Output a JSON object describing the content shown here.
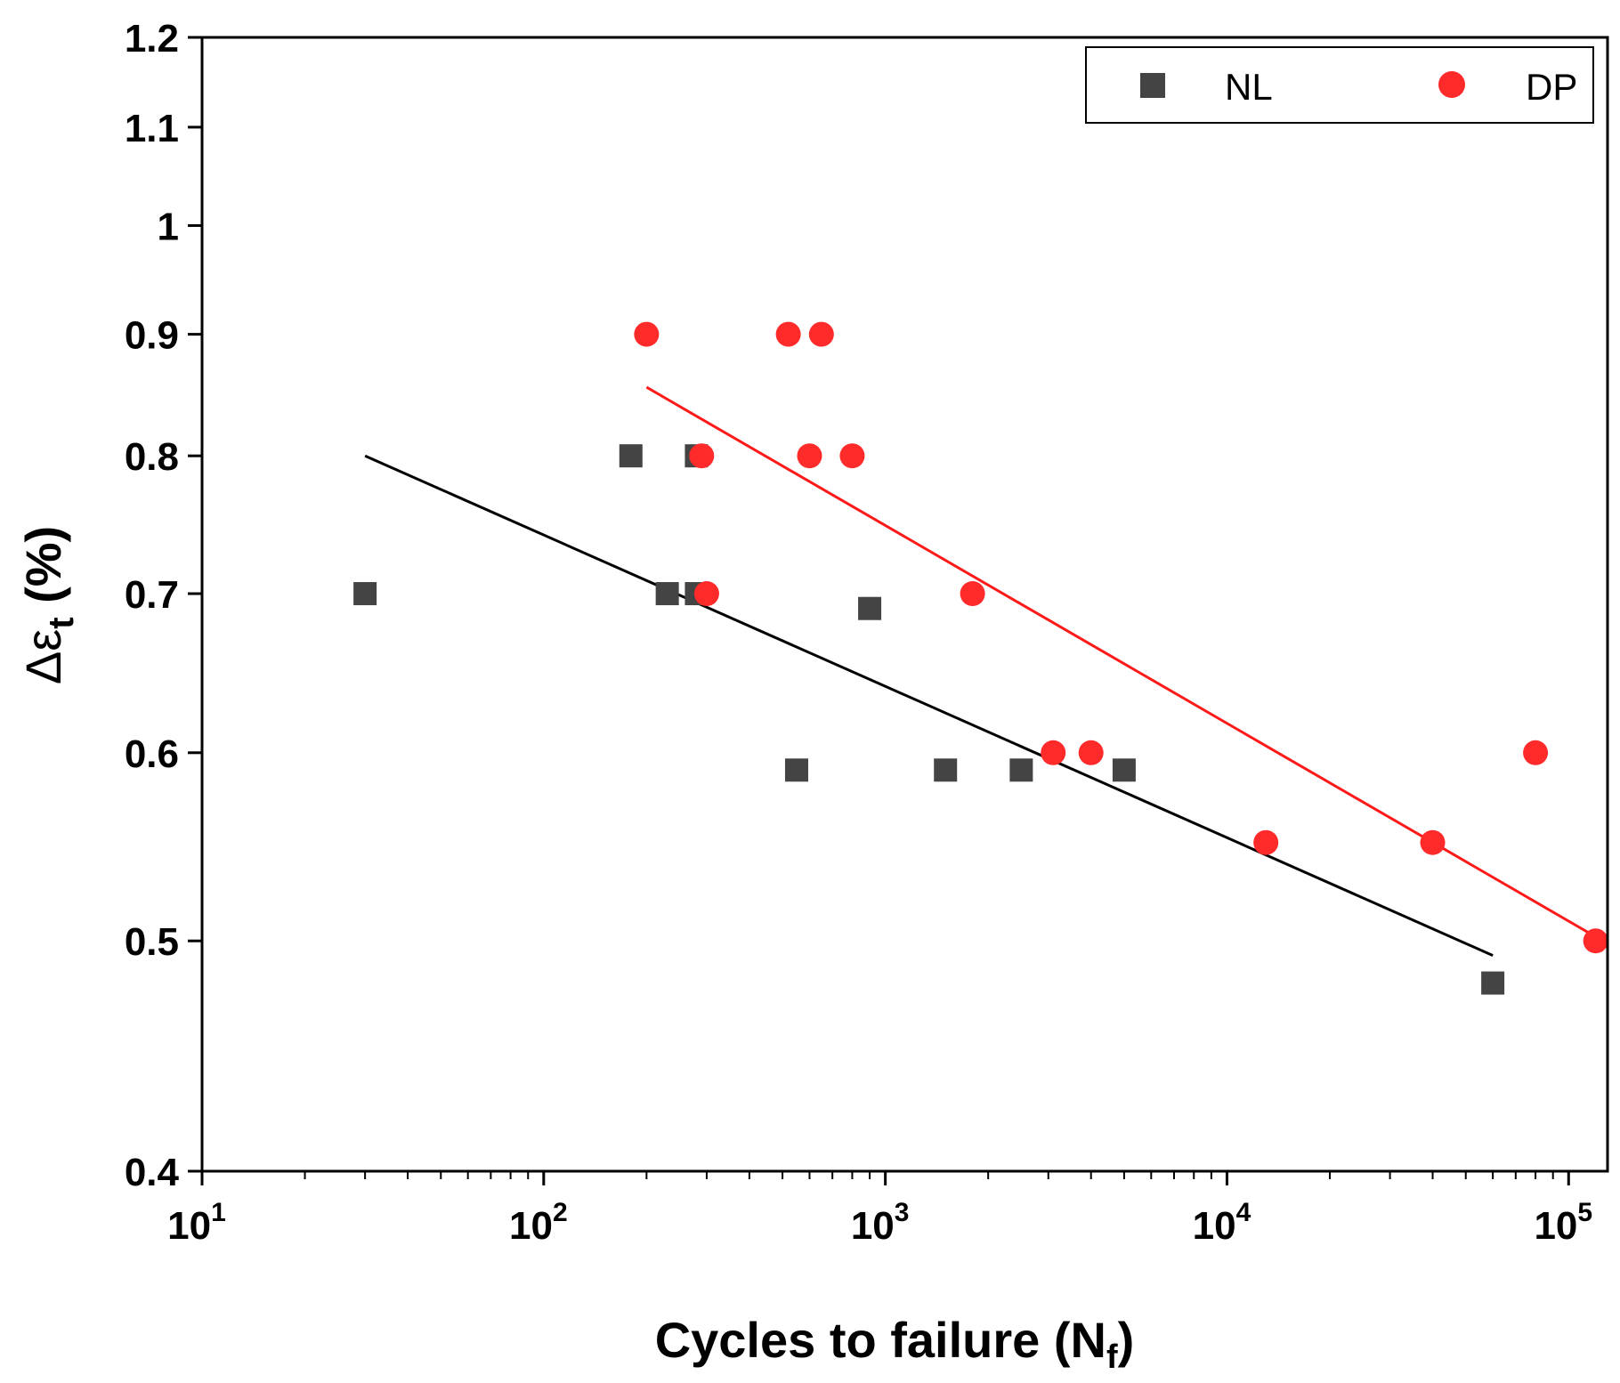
{
  "chart_data": {
    "type": "scatter",
    "xscale": "log",
    "yscale": "log",
    "xlim": [
      10,
      130000
    ],
    "ylim": [
      0.4,
      1.2
    ],
    "xlabel": "Cycles to failure (N",
    "xlabel_sub": "f",
    "xlabel_end": ")",
    "ylabel_prefix": "Δε",
    "ylabel_sub": "t",
    "ylabel_suffix": " (%)",
    "y_ticks": [
      {
        "value": 0.4,
        "label": "0.4"
      },
      {
        "value": 0.5,
        "label": "0.5"
      },
      {
        "value": 0.6,
        "label": "0.6"
      },
      {
        "value": 0.7,
        "label": "0.7"
      },
      {
        "value": 0.8,
        "label": "0.8"
      },
      {
        "value": 0.9,
        "label": "0.9"
      },
      {
        "value": 1.0,
        "label": "1"
      },
      {
        "value": 1.1,
        "label": "1.1"
      },
      {
        "value": 1.2,
        "label": "1.2"
      }
    ],
    "x_ticks": [
      {
        "value": 10,
        "base": "10",
        "exp": "1"
      },
      {
        "value": 100,
        "base": "10",
        "exp": "2"
      },
      {
        "value": 1000,
        "base": "10",
        "exp": "3"
      },
      {
        "value": 10000,
        "base": "10",
        "exp": "4"
      },
      {
        "value": 100000,
        "base": "10",
        "exp": "5"
      }
    ],
    "legend": {
      "position": "top-right"
    },
    "series": [
      {
        "name": "NL",
        "marker": "square",
        "color": "#444444",
        "points": [
          {
            "x": 30,
            "y": 0.7
          },
          {
            "x": 180,
            "y": 0.8
          },
          {
            "x": 230,
            "y": 0.7
          },
          {
            "x": 280,
            "y": 0.8
          },
          {
            "x": 280,
            "y": 0.7
          },
          {
            "x": 550,
            "y": 0.59
          },
          {
            "x": 900,
            "y": 0.69
          },
          {
            "x": 1500,
            "y": 0.59
          },
          {
            "x": 2500,
            "y": 0.59
          },
          {
            "x": 5000,
            "y": 0.59
          },
          {
            "x": 60000,
            "y": 0.48
          }
        ],
        "fit": {
          "x": [
            30,
            60000
          ],
          "y": [
            0.8,
            0.493
          ]
        }
      },
      {
        "name": "DP",
        "marker": "circle",
        "color": "#ff2b2b",
        "points": [
          {
            "x": 200,
            "y": 0.9
          },
          {
            "x": 520,
            "y": 0.9
          },
          {
            "x": 650,
            "y": 0.9
          },
          {
            "x": 290,
            "y": 0.8
          },
          {
            "x": 600,
            "y": 0.8
          },
          {
            "x": 800,
            "y": 0.8
          },
          {
            "x": 300,
            "y": 0.7
          },
          {
            "x": 1800,
            "y": 0.7
          },
          {
            "x": 3100,
            "y": 0.6
          },
          {
            "x": 4000,
            "y": 0.6
          },
          {
            "x": 13000,
            "y": 0.55
          },
          {
            "x": 40000,
            "y": 0.55
          },
          {
            "x": 80000,
            "y": 0.6
          },
          {
            "x": 120000,
            "y": 0.5
          }
        ],
        "fit": {
          "x": [
            200,
            120000
          ],
          "y": [
            0.855,
            0.502
          ]
        }
      }
    ]
  }
}
